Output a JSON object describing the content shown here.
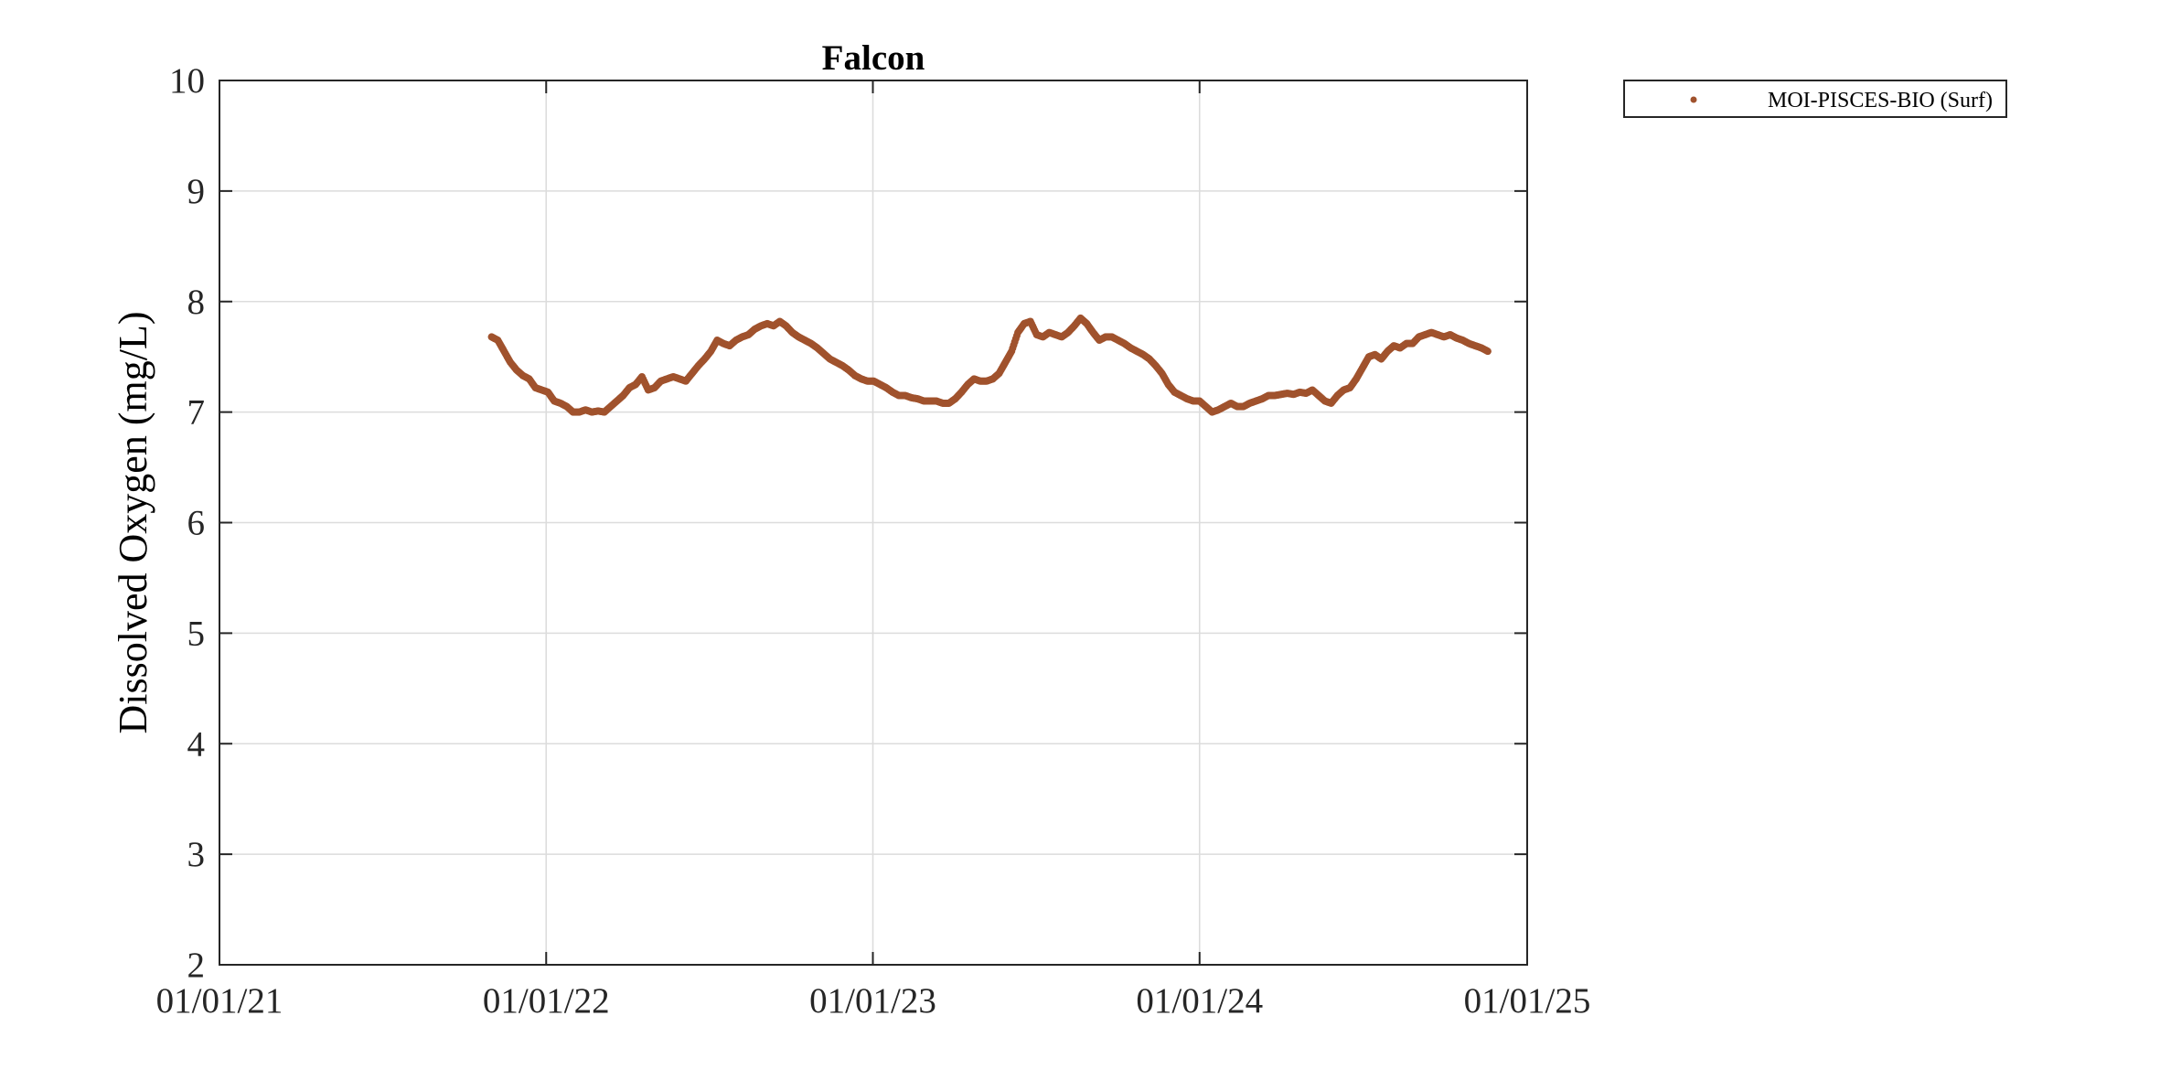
{
  "chart_data": {
    "type": "scatter",
    "title": "Falcon",
    "xlabel": "",
    "ylabel": "Dissolved Oxygen (mg/L)",
    "x_axis_type": "date",
    "xlim": [
      "2021-01-01",
      "2025-01-01"
    ],
    "ylim": [
      2,
      10
    ],
    "x_ticks": [
      "2021-01-01",
      "2022-01-01",
      "2023-01-01",
      "2024-01-01",
      "2025-01-01"
    ],
    "x_tick_labels": [
      "01/01/21",
      "01/01/22",
      "01/01/23",
      "01/01/24",
      "01/01/25"
    ],
    "y_ticks": [
      2,
      3,
      4,
      5,
      6,
      7,
      8,
      9,
      10
    ],
    "y_tick_labels": [
      "2",
      "3",
      "4",
      "5",
      "6",
      "7",
      "8",
      "9",
      "10"
    ],
    "grid": true,
    "legend_position": "outside-top-right",
    "series": [
      {
        "name": "MOI-PISCES-BIO (Surf)",
        "color": "#A0522D",
        "marker": "point",
        "points": [
          [
            "2021-11-01",
            7.68
          ],
          [
            "2021-11-08",
            7.65
          ],
          [
            "2021-11-15",
            7.55
          ],
          [
            "2021-11-22",
            7.45
          ],
          [
            "2021-11-29",
            7.38
          ],
          [
            "2021-12-06",
            7.33
          ],
          [
            "2021-12-13",
            7.3
          ],
          [
            "2021-12-20",
            7.22
          ],
          [
            "2021-12-27",
            7.2
          ],
          [
            "2022-01-03",
            7.18
          ],
          [
            "2022-01-10",
            7.1
          ],
          [
            "2022-01-17",
            7.08
          ],
          [
            "2022-01-24",
            7.05
          ],
          [
            "2022-01-31",
            7.0
          ],
          [
            "2022-02-07",
            7.0
          ],
          [
            "2022-02-14",
            7.02
          ],
          [
            "2022-02-21",
            7.0
          ],
          [
            "2022-02-28",
            7.01
          ],
          [
            "2022-03-07",
            7.0
          ],
          [
            "2022-03-14",
            7.05
          ],
          [
            "2022-03-21",
            7.1
          ],
          [
            "2022-03-28",
            7.15
          ],
          [
            "2022-04-04",
            7.22
          ],
          [
            "2022-04-11",
            7.25
          ],
          [
            "2022-04-18",
            7.32
          ],
          [
            "2022-04-25",
            7.2
          ],
          [
            "2022-05-02",
            7.22
          ],
          [
            "2022-05-09",
            7.28
          ],
          [
            "2022-05-16",
            7.3
          ],
          [
            "2022-05-23",
            7.32
          ],
          [
            "2022-05-30",
            7.3
          ],
          [
            "2022-06-06",
            7.28
          ],
          [
            "2022-06-13",
            7.35
          ],
          [
            "2022-06-20",
            7.42
          ],
          [
            "2022-06-27",
            7.48
          ],
          [
            "2022-07-04",
            7.55
          ],
          [
            "2022-07-11",
            7.65
          ],
          [
            "2022-07-18",
            7.62
          ],
          [
            "2022-07-25",
            7.6
          ],
          [
            "2022-08-01",
            7.65
          ],
          [
            "2022-08-08",
            7.68
          ],
          [
            "2022-08-15",
            7.7
          ],
          [
            "2022-08-22",
            7.75
          ],
          [
            "2022-08-29",
            7.78
          ],
          [
            "2022-09-05",
            7.8
          ],
          [
            "2022-09-12",
            7.78
          ],
          [
            "2022-09-19",
            7.82
          ],
          [
            "2022-09-26",
            7.78
          ],
          [
            "2022-10-03",
            7.72
          ],
          [
            "2022-10-10",
            7.68
          ],
          [
            "2022-10-17",
            7.65
          ],
          [
            "2022-10-24",
            7.62
          ],
          [
            "2022-10-31",
            7.58
          ],
          [
            "2022-11-07",
            7.53
          ],
          [
            "2022-11-14",
            7.48
          ],
          [
            "2022-11-21",
            7.45
          ],
          [
            "2022-11-28",
            7.42
          ],
          [
            "2022-12-05",
            7.38
          ],
          [
            "2022-12-12",
            7.33
          ],
          [
            "2022-12-19",
            7.3
          ],
          [
            "2022-12-26",
            7.28
          ],
          [
            "2023-01-02",
            7.28
          ],
          [
            "2023-01-09",
            7.25
          ],
          [
            "2023-01-16",
            7.22
          ],
          [
            "2023-01-23",
            7.18
          ],
          [
            "2023-01-30",
            7.15
          ],
          [
            "2023-02-06",
            7.15
          ],
          [
            "2023-02-13",
            7.13
          ],
          [
            "2023-02-20",
            7.12
          ],
          [
            "2023-02-27",
            7.1
          ],
          [
            "2023-03-06",
            7.1
          ],
          [
            "2023-03-13",
            7.1
          ],
          [
            "2023-03-20",
            7.08
          ],
          [
            "2023-03-27",
            7.08
          ],
          [
            "2023-04-03",
            7.12
          ],
          [
            "2023-04-10",
            7.18
          ],
          [
            "2023-04-17",
            7.25
          ],
          [
            "2023-04-24",
            7.3
          ],
          [
            "2023-05-01",
            7.28
          ],
          [
            "2023-05-08",
            7.28
          ],
          [
            "2023-05-15",
            7.3
          ],
          [
            "2023-05-22",
            7.35
          ],
          [
            "2023-05-29",
            7.45
          ],
          [
            "2023-06-05",
            7.55
          ],
          [
            "2023-06-12",
            7.72
          ],
          [
            "2023-06-19",
            7.8
          ],
          [
            "2023-06-26",
            7.82
          ],
          [
            "2023-07-03",
            7.7
          ],
          [
            "2023-07-10",
            7.68
          ],
          [
            "2023-07-17",
            7.72
          ],
          [
            "2023-07-24",
            7.7
          ],
          [
            "2023-07-31",
            7.68
          ],
          [
            "2023-08-07",
            7.72
          ],
          [
            "2023-08-14",
            7.78
          ],
          [
            "2023-08-21",
            7.85
          ],
          [
            "2023-08-28",
            7.8
          ],
          [
            "2023-09-04",
            7.72
          ],
          [
            "2023-09-11",
            7.65
          ],
          [
            "2023-09-18",
            7.68
          ],
          [
            "2023-09-25",
            7.68
          ],
          [
            "2023-10-02",
            7.65
          ],
          [
            "2023-10-09",
            7.62
          ],
          [
            "2023-10-16",
            7.58
          ],
          [
            "2023-10-23",
            7.55
          ],
          [
            "2023-10-30",
            7.52
          ],
          [
            "2023-11-06",
            7.48
          ],
          [
            "2023-11-13",
            7.42
          ],
          [
            "2023-11-20",
            7.35
          ],
          [
            "2023-11-27",
            7.25
          ],
          [
            "2023-12-04",
            7.18
          ],
          [
            "2023-12-11",
            7.15
          ],
          [
            "2023-12-18",
            7.12
          ],
          [
            "2023-12-25",
            7.1
          ],
          [
            "2024-01-01",
            7.1
          ],
          [
            "2024-01-08",
            7.05
          ],
          [
            "2024-01-15",
            7.0
          ],
          [
            "2024-01-22",
            7.02
          ],
          [
            "2024-01-29",
            7.05
          ],
          [
            "2024-02-05",
            7.08
          ],
          [
            "2024-02-12",
            7.05
          ],
          [
            "2024-02-19",
            7.05
          ],
          [
            "2024-02-26",
            7.08
          ],
          [
            "2024-03-04",
            7.1
          ],
          [
            "2024-03-11",
            7.12
          ],
          [
            "2024-03-18",
            7.15
          ],
          [
            "2024-03-25",
            7.15
          ],
          [
            "2024-04-01",
            7.16
          ],
          [
            "2024-04-08",
            7.17
          ],
          [
            "2024-04-15",
            7.16
          ],
          [
            "2024-04-22",
            7.18
          ],
          [
            "2024-04-29",
            7.17
          ],
          [
            "2024-05-06",
            7.2
          ],
          [
            "2024-05-13",
            7.15
          ],
          [
            "2024-05-20",
            7.1
          ],
          [
            "2024-05-27",
            7.08
          ],
          [
            "2024-06-03",
            7.15
          ],
          [
            "2024-06-10",
            7.2
          ],
          [
            "2024-06-17",
            7.22
          ],
          [
            "2024-06-24",
            7.3
          ],
          [
            "2024-07-01",
            7.4
          ],
          [
            "2024-07-08",
            7.5
          ],
          [
            "2024-07-15",
            7.52
          ],
          [
            "2024-07-22",
            7.48
          ],
          [
            "2024-07-29",
            7.55
          ],
          [
            "2024-08-05",
            7.6
          ],
          [
            "2024-08-12",
            7.58
          ],
          [
            "2024-08-19",
            7.62
          ],
          [
            "2024-08-26",
            7.62
          ],
          [
            "2024-09-02",
            7.68
          ],
          [
            "2024-09-09",
            7.7
          ],
          [
            "2024-09-16",
            7.72
          ],
          [
            "2024-09-23",
            7.7
          ],
          [
            "2024-09-30",
            7.68
          ],
          [
            "2024-10-07",
            7.7
          ],
          [
            "2024-10-14",
            7.67
          ],
          [
            "2024-10-21",
            7.65
          ],
          [
            "2024-10-28",
            7.62
          ],
          [
            "2024-11-04",
            7.6
          ],
          [
            "2024-11-11",
            7.58
          ],
          [
            "2024-11-18",
            7.55
          ]
        ]
      }
    ]
  }
}
